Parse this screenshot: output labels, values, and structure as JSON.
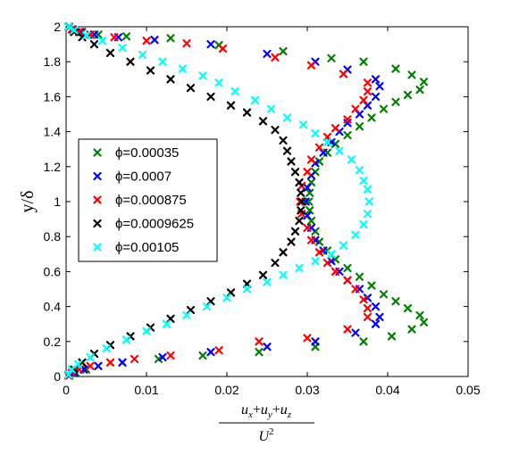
{
  "chart_data": {
    "type": "scatter",
    "title": "",
    "xlabel": "\\frac{\\bar{u_x'^2}+\\bar{u_y'^2}+\\bar{u_z'^2}}{U^2}",
    "ylabel": "y/δ",
    "xlim": [
      0,
      0.05
    ],
    "ylim": [
      0,
      2
    ],
    "xticks": [
      "0",
      "0.01",
      "0.02",
      "0.03",
      "0.04",
      "0.05"
    ],
    "yticks": [
      "0",
      "0.2",
      "0.4",
      "0.6",
      "0.8",
      "1",
      "1.2",
      "1.4",
      "1.6",
      "1.8",
      "2"
    ],
    "grid": false,
    "legend_position": "middle-left",
    "marker": "x",
    "series": [
      {
        "name": "ϕ=0.00035",
        "color": "#008000",
        "points": [
          [
            0.0004,
            2.0
          ],
          [
            0.0009,
            1.98
          ],
          [
            0.002,
            1.97
          ],
          [
            0.004,
            1.955
          ],
          [
            0.0075,
            1.945
          ],
          [
            0.013,
            1.935
          ],
          [
            0.019,
            1.895
          ],
          [
            0.027,
            1.86
          ],
          [
            0.033,
            1.82
          ],
          [
            0.037,
            1.8
          ],
          [
            0.041,
            1.76
          ],
          [
            0.043,
            1.725
          ],
          [
            0.0445,
            1.685
          ],
          [
            0.044,
            1.64
          ],
          [
            0.0425,
            1.61
          ],
          [
            0.041,
            1.57
          ],
          [
            0.0395,
            1.53
          ],
          [
            0.038,
            1.48
          ],
          [
            0.0365,
            1.43
          ],
          [
            0.035,
            1.38
          ],
          [
            0.0335,
            1.33
          ],
          [
            0.0325,
            1.28
          ],
          [
            0.0315,
            1.23
          ],
          [
            0.031,
            1.17
          ],
          [
            0.0305,
            1.11
          ],
          [
            0.0303,
            1.05
          ],
          [
            0.0302,
            1.0
          ],
          [
            0.0303,
            0.95
          ],
          [
            0.0305,
            0.89
          ],
          [
            0.031,
            0.83
          ],
          [
            0.0315,
            0.77
          ],
          [
            0.0325,
            0.72
          ],
          [
            0.0335,
            0.67
          ],
          [
            0.035,
            0.62
          ],
          [
            0.0365,
            0.57
          ],
          [
            0.038,
            0.52
          ],
          [
            0.0395,
            0.47
          ],
          [
            0.041,
            0.43
          ],
          [
            0.0425,
            0.39
          ],
          [
            0.044,
            0.35
          ],
          [
            0.0445,
            0.31
          ],
          [
            0.043,
            0.27
          ],
          [
            0.0405,
            0.23
          ],
          [
            0.037,
            0.2
          ],
          [
            0.031,
            0.17
          ],
          [
            0.024,
            0.14
          ],
          [
            0.017,
            0.12
          ],
          [
            0.0115,
            0.1
          ],
          [
            0.007,
            0.08
          ],
          [
            0.004,
            0.06
          ],
          [
            0.0025,
            0.04
          ],
          [
            0.0012,
            0.02
          ],
          [
            0.0004,
            0.005
          ]
        ]
      },
      {
        "name": "ϕ=0.0007",
        "color": "#0000ff",
        "points": [
          [
            0.0003,
            2.0
          ],
          [
            0.0008,
            1.985
          ],
          [
            0.0018,
            1.97
          ],
          [
            0.0035,
            1.955
          ],
          [
            0.0065,
            1.94
          ],
          [
            0.011,
            1.925
          ],
          [
            0.018,
            1.9
          ],
          [
            0.025,
            1.845
          ],
          [
            0.031,
            1.8
          ],
          [
            0.035,
            1.755
          ],
          [
            0.0385,
            1.7
          ],
          [
            0.039,
            1.66
          ],
          [
            0.0385,
            1.6
          ],
          [
            0.0375,
            1.55
          ],
          [
            0.0365,
            1.5
          ],
          [
            0.035,
            1.45
          ],
          [
            0.034,
            1.4
          ],
          [
            0.033,
            1.34
          ],
          [
            0.032,
            1.28
          ],
          [
            0.031,
            1.22
          ],
          [
            0.0305,
            1.15
          ],
          [
            0.03,
            1.08
          ],
          [
            0.0298,
            1.0
          ],
          [
            0.03,
            0.92
          ],
          [
            0.0305,
            0.85
          ],
          [
            0.031,
            0.78
          ],
          [
            0.032,
            0.72
          ],
          [
            0.033,
            0.66
          ],
          [
            0.034,
            0.6
          ],
          [
            0.035,
            0.55
          ],
          [
            0.0365,
            0.5
          ],
          [
            0.0375,
            0.45
          ],
          [
            0.0385,
            0.4
          ],
          [
            0.039,
            0.34
          ],
          [
            0.0385,
            0.3
          ],
          [
            0.036,
            0.25
          ],
          [
            0.031,
            0.2
          ],
          [
            0.025,
            0.17
          ],
          [
            0.018,
            0.14
          ],
          [
            0.012,
            0.11
          ],
          [
            0.007,
            0.08
          ],
          [
            0.004,
            0.06
          ],
          [
            0.0022,
            0.04
          ],
          [
            0.001,
            0.02
          ],
          [
            0.0003,
            0.005
          ]
        ]
      },
      {
        "name": "ϕ=0.000875",
        "color": "#ff0000",
        "points": [
          [
            0.0003,
            2.0
          ],
          [
            0.0007,
            1.985
          ],
          [
            0.0016,
            1.97
          ],
          [
            0.003,
            1.955
          ],
          [
            0.006,
            1.94
          ],
          [
            0.01,
            1.92
          ],
          [
            0.015,
            1.905
          ],
          [
            0.0195,
            1.875
          ],
          [
            0.026,
            1.825
          ],
          [
            0.0305,
            1.78
          ],
          [
            0.0345,
            1.73
          ],
          [
            0.0375,
            1.68
          ],
          [
            0.0375,
            1.63
          ],
          [
            0.037,
            1.58
          ],
          [
            0.036,
            1.53
          ],
          [
            0.035,
            1.47
          ],
          [
            0.0335,
            1.42
          ],
          [
            0.0325,
            1.37
          ],
          [
            0.0315,
            1.31
          ],
          [
            0.0305,
            1.24
          ],
          [
            0.03,
            1.17
          ],
          [
            0.0293,
            1.09
          ],
          [
            0.0291,
            1.0
          ],
          [
            0.0293,
            0.93
          ],
          [
            0.03,
            0.85
          ],
          [
            0.0305,
            0.78
          ],
          [
            0.0315,
            0.71
          ],
          [
            0.0325,
            0.65
          ],
          [
            0.0335,
            0.6
          ],
          [
            0.035,
            0.55
          ],
          [
            0.036,
            0.5
          ],
          [
            0.037,
            0.44
          ],
          [
            0.0375,
            0.39
          ],
          [
            0.0375,
            0.34
          ],
          [
            0.035,
            0.27
          ],
          [
            0.03,
            0.22
          ],
          [
            0.024,
            0.2
          ],
          [
            0.019,
            0.15
          ],
          [
            0.013,
            0.12
          ],
          [
            0.0085,
            0.1
          ],
          [
            0.0055,
            0.08
          ],
          [
            0.003,
            0.06
          ],
          [
            0.0016,
            0.04
          ],
          [
            0.0007,
            0.02
          ],
          [
            0.0003,
            0.005
          ]
        ]
      },
      {
        "name": "ϕ=0.0009625",
        "color": "#000000",
        "points": [
          [
            0.0003,
            2.0
          ],
          [
            0.001,
            1.97
          ],
          [
            0.002,
            1.94
          ],
          [
            0.0035,
            1.9
          ],
          [
            0.0055,
            1.85
          ],
          [
            0.008,
            1.8
          ],
          [
            0.0105,
            1.75
          ],
          [
            0.013,
            1.7
          ],
          [
            0.0155,
            1.65
          ],
          [
            0.018,
            1.6
          ],
          [
            0.0205,
            1.55
          ],
          [
            0.0225,
            1.51
          ],
          [
            0.0245,
            1.46
          ],
          [
            0.026,
            1.41
          ],
          [
            0.027,
            1.35
          ],
          [
            0.0275,
            1.29
          ],
          [
            0.028,
            1.23
          ],
          [
            0.0285,
            1.17
          ],
          [
            0.029,
            1.11
          ],
          [
            0.0292,
            1.05
          ],
          [
            0.0293,
            1.0
          ],
          [
            0.0292,
            0.95
          ],
          [
            0.029,
            0.89
          ],
          [
            0.0285,
            0.83
          ],
          [
            0.028,
            0.77
          ],
          [
            0.027,
            0.71
          ],
          [
            0.026,
            0.65
          ],
          [
            0.0245,
            0.58
          ],
          [
            0.0225,
            0.53
          ],
          [
            0.0205,
            0.48
          ],
          [
            0.018,
            0.43
          ],
          [
            0.0155,
            0.38
          ],
          [
            0.013,
            0.33
          ],
          [
            0.0105,
            0.28
          ],
          [
            0.008,
            0.23
          ],
          [
            0.0055,
            0.18
          ],
          [
            0.0035,
            0.13
          ],
          [
            0.002,
            0.08
          ],
          [
            0.001,
            0.04
          ],
          [
            0.0003,
            0.01
          ]
        ]
      },
      {
        "name": "ϕ=0.00105",
        "color": "#00ffff",
        "points": [
          [
            0.0003,
            2.0
          ],
          [
            0.001,
            1.98
          ],
          [
            0.0025,
            1.95
          ],
          [
            0.0045,
            1.92
          ],
          [
            0.007,
            1.88
          ],
          [
            0.0095,
            1.84
          ],
          [
            0.012,
            1.8
          ],
          [
            0.0145,
            1.76
          ],
          [
            0.017,
            1.72
          ],
          [
            0.019,
            1.68
          ],
          [
            0.021,
            1.63
          ],
          [
            0.0235,
            1.58
          ],
          [
            0.0255,
            1.53
          ],
          [
            0.0275,
            1.48
          ],
          [
            0.0295,
            1.44
          ],
          [
            0.031,
            1.39
          ],
          [
            0.0325,
            1.34
          ],
          [
            0.034,
            1.29
          ],
          [
            0.0355,
            1.24
          ],
          [
            0.0365,
            1.18
          ],
          [
            0.037,
            1.12
          ],
          [
            0.0375,
            1.07
          ],
          [
            0.0377,
            1.0
          ],
          [
            0.0375,
            0.93
          ],
          [
            0.037,
            0.87
          ],
          [
            0.036,
            0.81
          ],
          [
            0.0345,
            0.75
          ],
          [
            0.033,
            0.7
          ],
          [
            0.031,
            0.66
          ],
          [
            0.029,
            0.62
          ],
          [
            0.027,
            0.58
          ],
          [
            0.025,
            0.54
          ],
          [
            0.0225,
            0.5
          ],
          [
            0.02,
            0.45
          ],
          [
            0.0175,
            0.4
          ],
          [
            0.015,
            0.35
          ],
          [
            0.0125,
            0.3
          ],
          [
            0.01,
            0.26
          ],
          [
            0.0075,
            0.21
          ],
          [
            0.005,
            0.16
          ],
          [
            0.003,
            0.11
          ],
          [
            0.0015,
            0.07
          ],
          [
            0.0007,
            0.04
          ],
          [
            0.0003,
            0.01
          ]
        ]
      }
    ]
  },
  "axis": {
    "ylabel": "y/δ",
    "xlabel_numerator_terms": [
      "u",
      "x",
      "+",
      "u",
      "y",
      "+",
      "u",
      "z"
    ],
    "xlabel_denominator": "U",
    "xlabel_exponent": "2"
  }
}
